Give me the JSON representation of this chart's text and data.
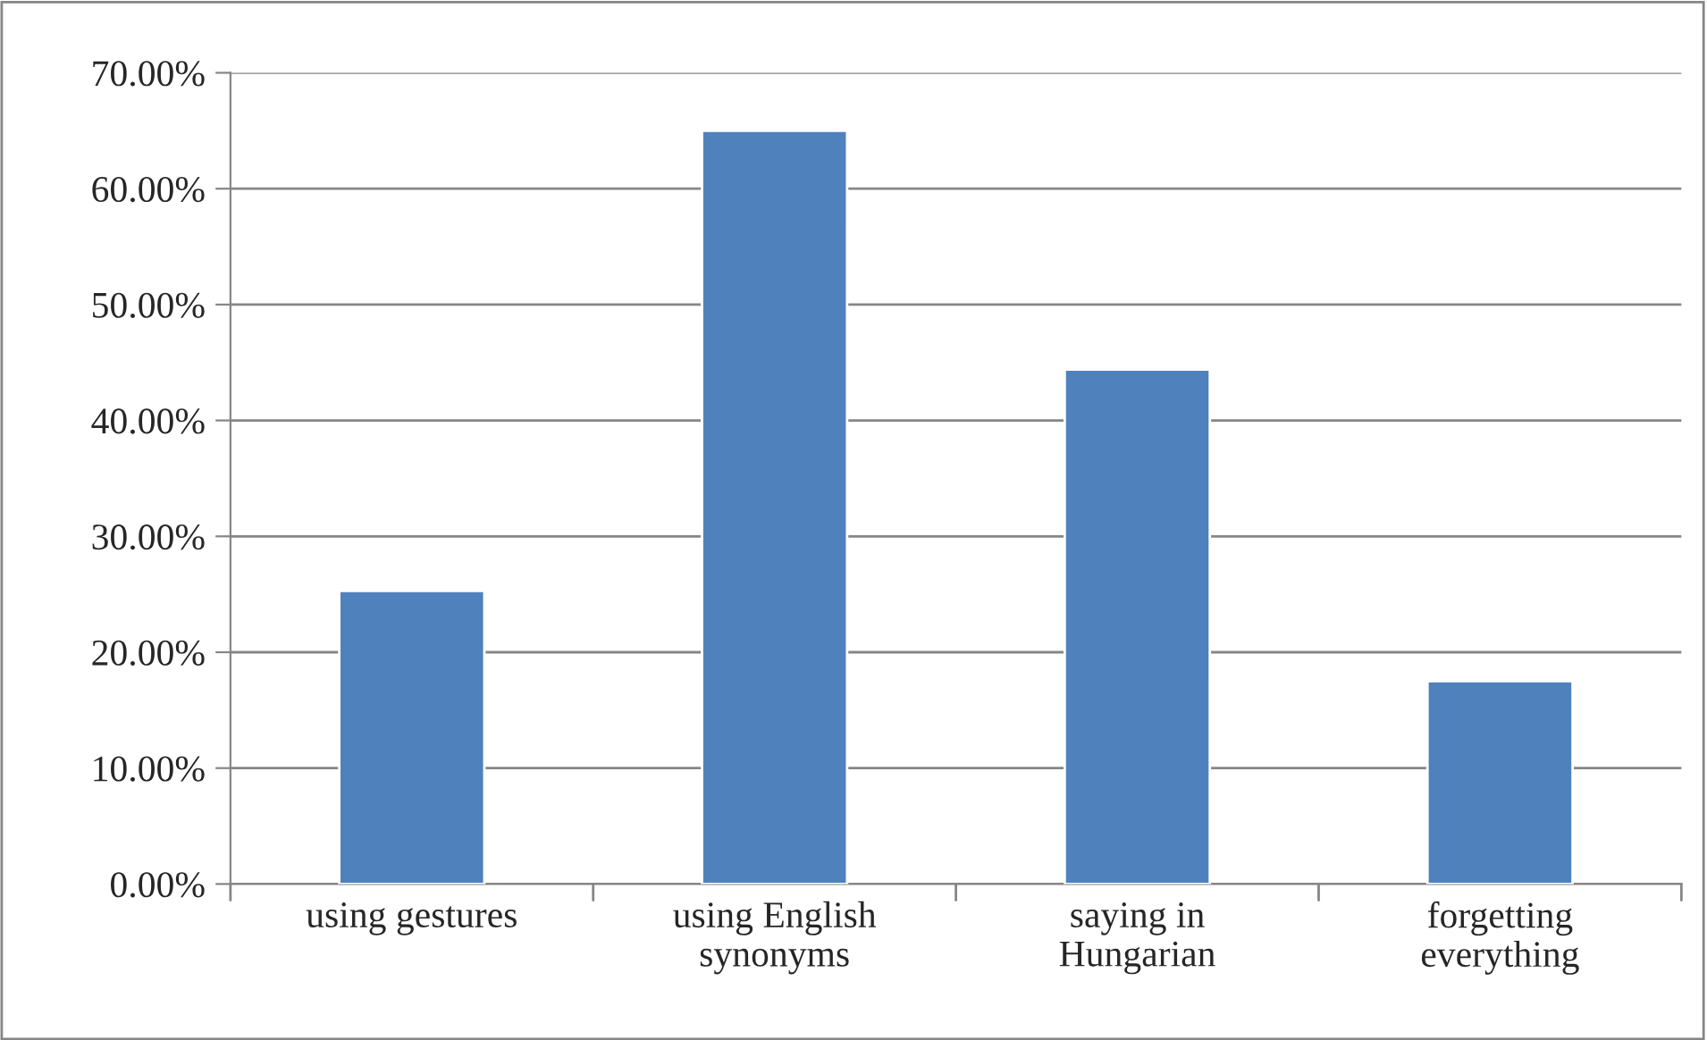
{
  "chart_data": {
    "type": "bar",
    "categories": [
      "using gestures",
      "using English\nsynonyms",
      "saying in\nHungarian",
      "forgetting\neverything"
    ],
    "values": [
      25.3,
      65.0,
      44.4,
      17.5
    ],
    "color": "#4f81bd",
    "ylim": [
      0,
      70
    ],
    "yticks": [
      {
        "value": 0,
        "label": "0.00%"
      },
      {
        "value": 10,
        "label": "10.00%"
      },
      {
        "value": 20,
        "label": "20.00%"
      },
      {
        "value": 30,
        "label": "30.00%"
      },
      {
        "value": 40,
        "label": "40.00%"
      },
      {
        "value": 50,
        "label": "50.00%"
      },
      {
        "value": 60,
        "label": "60.00%"
      },
      {
        "value": 70,
        "label": "70.00%"
      }
    ],
    "grid": "y",
    "legend": false
  }
}
